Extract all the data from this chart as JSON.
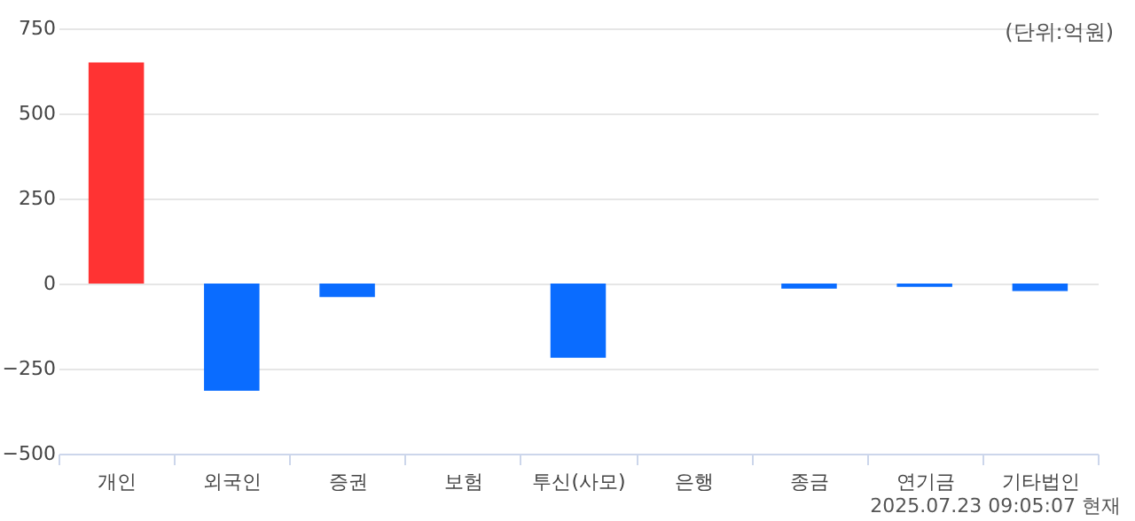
{
  "chart_data": {
    "type": "bar",
    "categories": [
      "개인",
      "외국인",
      "증권",
      "보험",
      "투신(사모)",
      "은행",
      "종금",
      "연기금",
      "기타법인"
    ],
    "values": [
      650,
      -315,
      -40,
      0,
      -218,
      0,
      -15,
      -10,
      -22
    ],
    "colors": [
      "#ff3333",
      "#0a6cff",
      "#0a6cff",
      "#0a6cff",
      "#0a6cff",
      "#0a6cff",
      "#0a6cff",
      "#0a6cff",
      "#0a6cff"
    ],
    "ylim": [
      -500,
      750
    ],
    "yticks": [
      -500,
      -250,
      0,
      250,
      500,
      750
    ],
    "grid": "y",
    "annotations": [
      "(단위:억원)",
      "2025.07.23 09:05:07 현재"
    ]
  }
}
